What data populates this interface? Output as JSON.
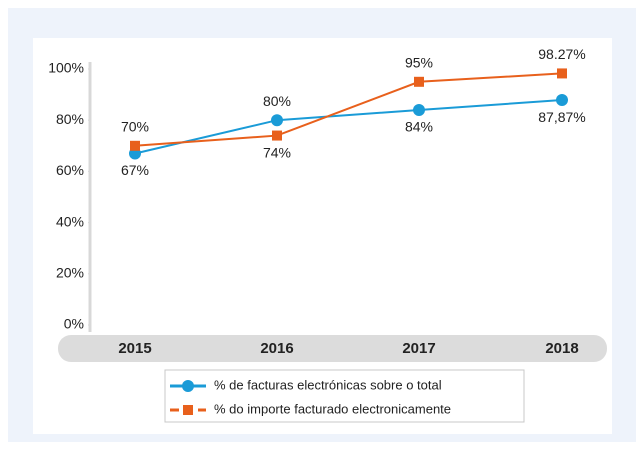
{
  "chart_data": {
    "type": "line",
    "categories": [
      "2015",
      "2016",
      "2017",
      "2018"
    ],
    "series": [
      {
        "name": "% de facturas electrónicas sobre o total",
        "color": "#1a9bd7",
        "values": [
          67,
          80,
          84,
          87.87
        ],
        "value_labels": [
          "67%",
          "80%",
          "84%",
          "87,87%"
        ]
      },
      {
        "name": "% do importe facturado electronicamente",
        "color": "#e8601c",
        "values": [
          70,
          74,
          95,
          98.27
        ],
        "value_labels": [
          "70%",
          "74%",
          "95%",
          "98.27%"
        ]
      }
    ],
    "ylim": [
      0,
      100
    ],
    "yticks": [
      {
        "value": 0,
        "label": "0%"
      },
      {
        "value": 20,
        "label": "20%"
      },
      {
        "value": 40,
        "label": "40%"
      },
      {
        "value": 60,
        "label": "60%"
      },
      {
        "value": 80,
        "label": "80%"
      },
      {
        "value": 100,
        "label": "100%"
      }
    ]
  }
}
